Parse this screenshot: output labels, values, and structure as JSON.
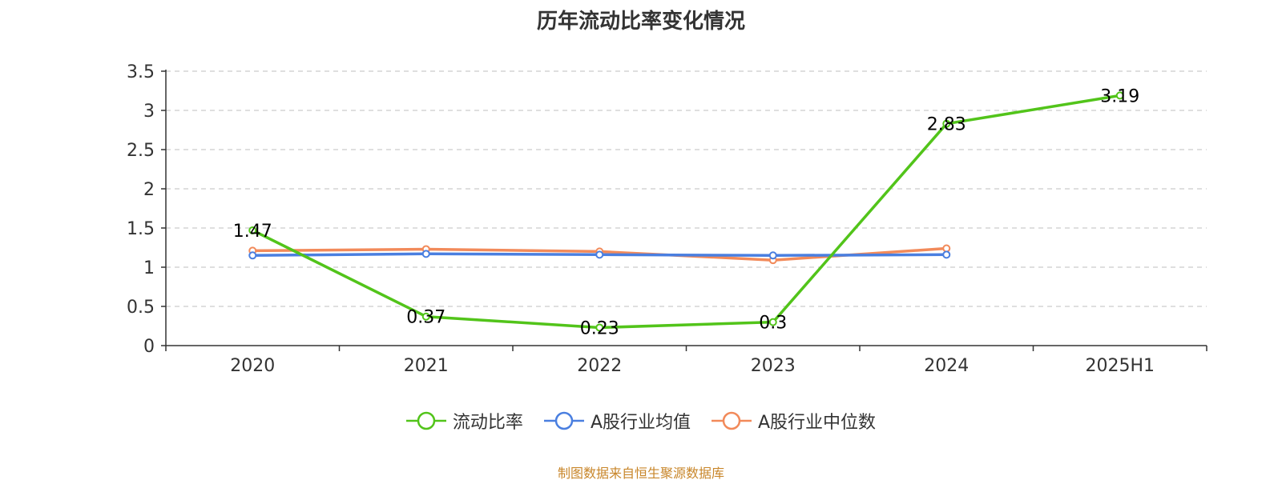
{
  "chart_data": {
    "type": "line",
    "title": "历年流动比率变化情况",
    "categories": [
      "2020",
      "2021",
      "2022",
      "2023",
      "2024",
      "2025H1"
    ],
    "ylim": [
      0,
      3.5
    ],
    "y_ticks": [
      "0",
      "0.5",
      "1",
      "1.5",
      "2",
      "2.5",
      "3",
      "3.5"
    ],
    "grid": true,
    "legend_position": "bottom",
    "series": [
      {
        "name": "流动比率",
        "color": "#52c41a",
        "values": [
          1.47,
          0.37,
          0.23,
          0.3,
          2.83,
          3.19
        ],
        "labels": [
          "1.47",
          "0.37",
          "0.23",
          "0.3",
          "2.83",
          "3.19"
        ],
        "show_labels": true
      },
      {
        "name": "A股行业均值",
        "color": "#4a7fe0",
        "values": [
          1.15,
          1.17,
          1.16,
          1.15,
          1.16,
          null
        ],
        "show_labels": false
      },
      {
        "name": "A股行业中位数",
        "color": "#f28a5a",
        "values": [
          1.21,
          1.23,
          1.2,
          1.09,
          1.24,
          null
        ],
        "show_labels": false
      }
    ]
  },
  "footer": {
    "source": "制图数据来自恒生聚源数据库"
  }
}
